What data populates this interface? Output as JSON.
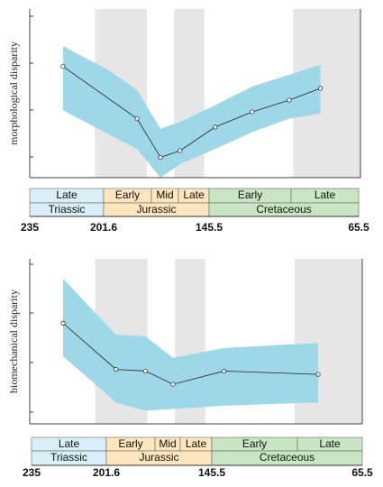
{
  "colors": {
    "band": "#9ed7e8",
    "line": "#222222",
    "gray_interval": "#e6e6e6",
    "triassic": "#d9eef7",
    "jurassic": "#fde6bd",
    "cretaceous": "#c9e5c3"
  },
  "chart_data": [
    {
      "type": "line",
      "ylabel": "morphological disparity",
      "xlim": [
        235,
        65.5
      ],
      "ylim": [
        0,
        10
      ],
      "gray_intervals": [
        [
          201.6,
          175
        ],
        [
          161,
          145.5
        ],
        [
          100,
          65.5
        ]
      ],
      "series": [
        {
          "x": [
            218,
            180,
            168,
            158,
            140,
            121,
            102,
            86
          ],
          "y": [
            6.6,
            3.5,
            1.2,
            1.6,
            3.0,
            3.9,
            4.6,
            5.3
          ]
        }
      ],
      "band": {
        "x": [
          218,
          195,
          180,
          168,
          158,
          140,
          121,
          102,
          86
        ],
        "upper": [
          7.8,
          6.4,
          5.2,
          2.9,
          3.3,
          4.3,
          5.4,
          6.1,
          6.7
        ],
        "lower": [
          4.0,
          2.6,
          1.7,
          0.0,
          0.8,
          1.7,
          2.7,
          3.5,
          3.8
        ]
      },
      "timescale": {
        "epochs": [
          "Late",
          "Early",
          "Mid",
          "Late",
          "Early",
          "Late"
        ],
        "periods": [
          "Triassic",
          "Jurassic",
          "Cretaceous"
        ],
        "ages": [
          "235",
          "201.6",
          "145.5",
          "65.5"
        ]
      }
    },
    {
      "type": "line",
      "ylabel": "biomechanical disparity",
      "xlim": [
        235,
        65.5
      ],
      "ylim": [
        0,
        10
      ],
      "gray_intervals": [
        [
          201.6,
          175
        ],
        [
          161,
          145.5
        ],
        [
          100,
          65.5
        ]
      ],
      "series": [
        {
          "x": [
            218,
            191,
            176,
            162,
            136,
            88
          ],
          "y": [
            6.1,
            3.3,
            3.2,
            2.4,
            3.2,
            3.0
          ]
        }
      ],
      "band": {
        "x": [
          218,
          191,
          176,
          162,
          136,
          88
        ],
        "upper": [
          8.8,
          5.4,
          5.3,
          4.0,
          4.6,
          4.9
        ],
        "lower": [
          4.1,
          1.3,
          0.8,
          0.9,
          1.1,
          1.3
        ]
      },
      "timescale": {
        "epochs": [
          "Late",
          "Early",
          "Mid",
          "Late",
          "Early",
          "Late"
        ],
        "periods": [
          "Triassic",
          "Jurassic",
          "Cretaceous"
        ],
        "ages": [
          "235",
          "201.6",
          "145.5",
          "65.5"
        ]
      }
    }
  ]
}
